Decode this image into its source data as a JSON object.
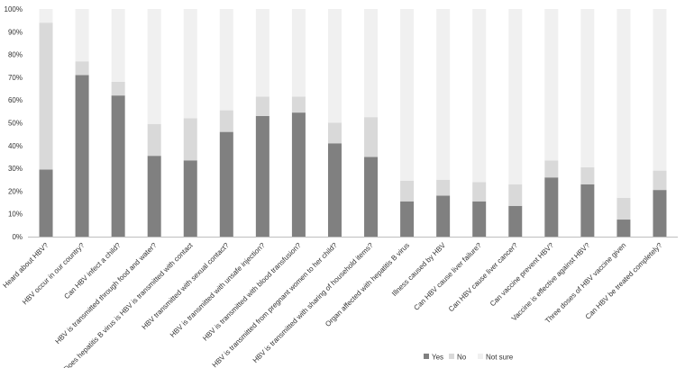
{
  "chart_data": {
    "type": "bar",
    "stacked": true,
    "percent_stacked": true,
    "title": "",
    "xlabel": "",
    "ylabel": "",
    "ylim": [
      0,
      100
    ],
    "yticks": [
      "0%",
      "10%",
      "20%",
      "30%",
      "40%",
      "50%",
      "60%",
      "70%",
      "80%",
      "90%",
      "100%"
    ],
    "grid": false,
    "legend_position": "bottom",
    "categories": [
      "Heard about HBV?",
      "HBV occur in our country?",
      "Can HBV infect a child?",
      "HBV is transmitted through food and water?",
      "Does hepatitis B virus is HBV is transmitted with contact",
      "HBV transmitted with sexual contact?",
      "HBV is transmitted with unsafe injection?",
      "HBV is transmitted with blood transfusion?",
      "HBV is transmitted from pregnant women to her child?",
      "HBV is transmitted with sharing of household items?",
      "Organ affected with hepatitis B virus",
      "Illness caused by HBV",
      "Can HBV cause liver failure?",
      "Can HBV cause liver cancer?",
      "Can vaccine prevent HBV?",
      "Vaccine is effective against HBV?",
      "Three doses of HBV vaccine given",
      "Can HBV be treated completely?"
    ],
    "series": [
      {
        "name": "Yes",
        "color": "#808080",
        "values": [
          29.5,
          71,
          62,
          35.5,
          33.5,
          46,
          53,
          54.5,
          41,
          35,
          15.5,
          18,
          15.5,
          13.5,
          26,
          23,
          7.5,
          20.5
        ]
      },
      {
        "name": "No",
        "color": "#d9d9d9",
        "values": [
          64.5,
          6,
          6,
          14,
          18.5,
          9.5,
          8.5,
          7,
          9,
          17.5,
          9,
          7,
          8.5,
          9.5,
          7.5,
          7.5,
          9.5,
          8.5
        ]
      },
      {
        "name": "Not sure",
        "color": "#f0f0f0",
        "values": [
          6,
          23,
          32,
          50.5,
          48,
          44.5,
          38.5,
          38.5,
          50,
          47.5,
          75.5,
          75,
          76,
          77,
          66.5,
          69.5,
          83,
          71
        ]
      }
    ],
    "axis_color": "#bfbfbf"
  }
}
